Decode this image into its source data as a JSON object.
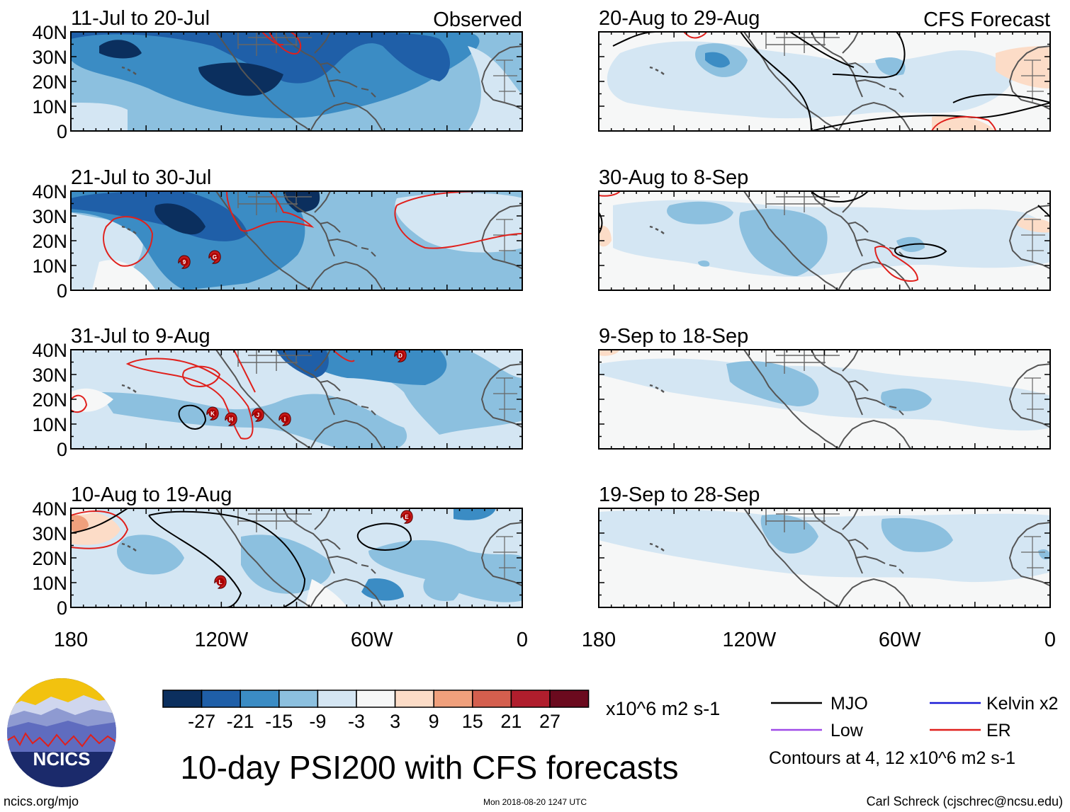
{
  "columns": {
    "left": {
      "corner_label": "Observed",
      "panels": [
        {
          "period": "11-Jul to 20-Jul"
        },
        {
          "period": "21-Jul to 30-Jul"
        },
        {
          "period": "31-Jul to 9-Aug"
        },
        {
          "period": "10-Aug to 19-Aug"
        }
      ]
    },
    "right": {
      "corner_label": "CFS Forecast",
      "panels": [
        {
          "period": "20-Aug to 29-Aug"
        },
        {
          "period": "30-Aug to 8-Sep"
        },
        {
          "period": "9-Sep to 18-Sep"
        },
        {
          "period": "19-Sep to 28-Sep"
        }
      ]
    }
  },
  "lat_labels": [
    "40N",
    "30N",
    "20N",
    "10N",
    "0"
  ],
  "lon_labels": [
    "180",
    "120W",
    "60W",
    "0"
  ],
  "colorbar": {
    "colors": [
      "#0b2f5e",
      "#1f5fa8",
      "#3b8cc4",
      "#8cc0df",
      "#d4e6f3",
      "#f6f7f7",
      "#fcdcc7",
      "#f0a07c",
      "#d45f4e",
      "#b01e2d",
      "#6b0a1e"
    ],
    "tick_labels": [
      "-27",
      "-21",
      "-15",
      "-9",
      "-3",
      "3",
      "9",
      "15",
      "21",
      "27"
    ],
    "units": "x10^6 m2 s-1"
  },
  "title": "10-day PSI200 with CFS forecasts",
  "legend": {
    "items": [
      {
        "label": "MJO",
        "color": "#000000"
      },
      {
        "label": "Kelvin x2",
        "color": "#1a1ad6"
      },
      {
        "label": "Low",
        "color": "#a04be8"
      },
      {
        "label": "ER",
        "color": "#e0201c"
      }
    ],
    "note": "Contours at 4, 12 x10^6 m2 s-1"
  },
  "footer": {
    "site": "ncics.org/mjo",
    "timestamp": "Mon 2018-08-20 1247 UTC",
    "author": "Carl Schreck (cjschrec@ncsu.edu)"
  },
  "logo": {
    "text": "NCICS"
  },
  "storms": [
    {
      "panel": 1,
      "label": "9"
    },
    {
      "panel": 1,
      "label": "G"
    },
    {
      "panel": 2,
      "label": "D"
    },
    {
      "panel": 2,
      "label": "K"
    },
    {
      "panel": 2,
      "label": "H"
    },
    {
      "panel": 2,
      "label": "J"
    },
    {
      "panel": 2,
      "label": "I"
    },
    {
      "panel": 3,
      "label": "E"
    },
    {
      "panel": 3,
      "label": "L"
    }
  ]
}
